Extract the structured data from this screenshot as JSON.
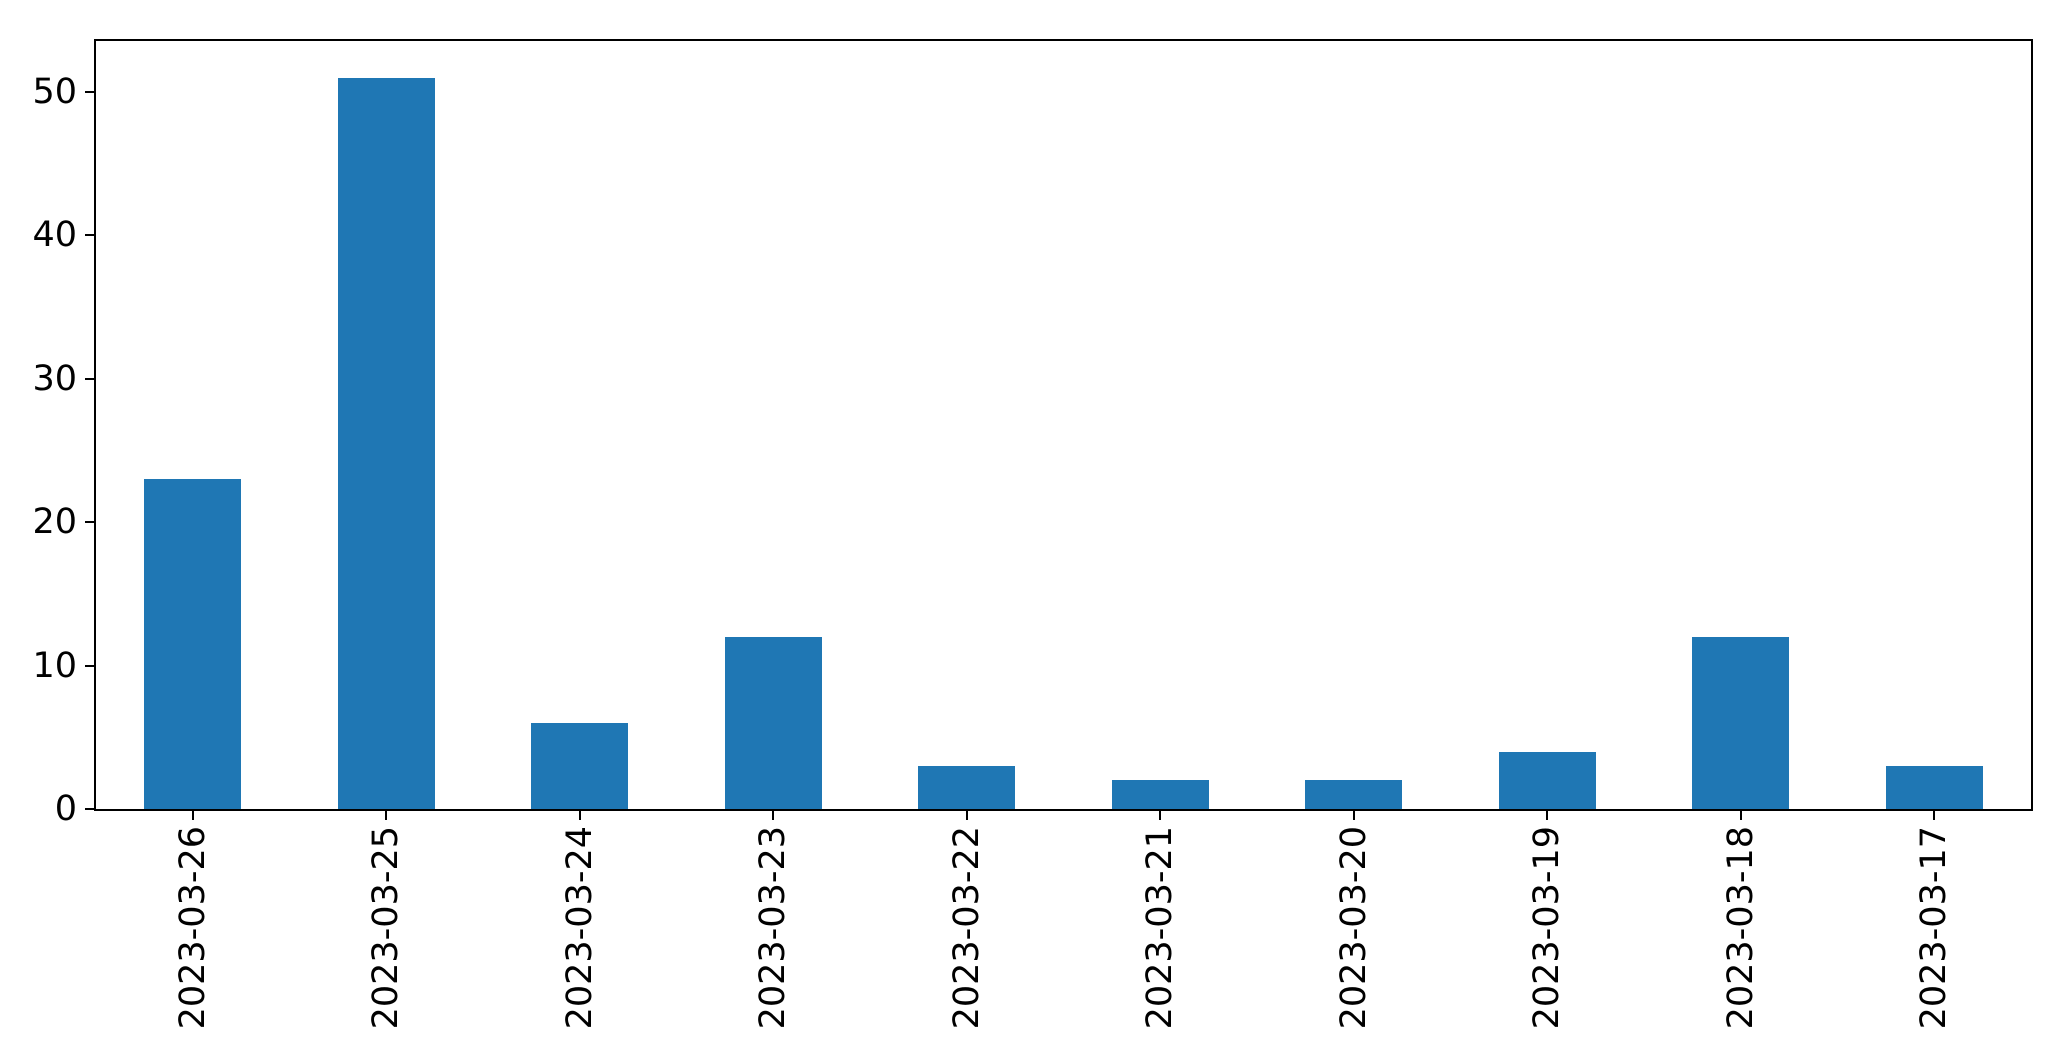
{
  "chart_data": {
    "type": "bar",
    "title": "",
    "xlabel": "",
    "ylabel": "",
    "categories": [
      "2023-03-26",
      "2023-03-25",
      "2023-03-24",
      "2023-03-23",
      "2023-03-22",
      "2023-03-21",
      "2023-03-20",
      "2023-03-19",
      "2023-03-18",
      "2023-03-17"
    ],
    "values": [
      23,
      51,
      6,
      12,
      3,
      2,
      2,
      4,
      12,
      3
    ],
    "y_ticks": [
      0,
      10,
      20,
      30,
      40,
      50
    ],
    "ylim": [
      0,
      53.55
    ],
    "x_tick_rotation_deg": 90,
    "bar_color": "#1f77b4",
    "axis_color": "#000000",
    "background_color": "#ffffff",
    "grid": false,
    "legend": null
  }
}
